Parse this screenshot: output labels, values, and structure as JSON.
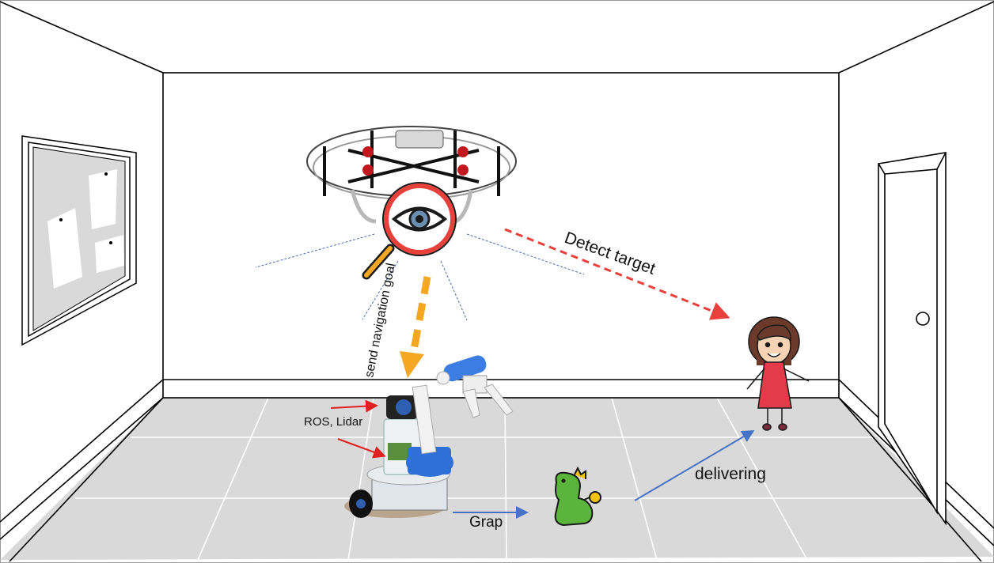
{
  "labels": {
    "detect_target": "Detect target",
    "send_navigation_goal": "send navigation goal",
    "ros_lidar": "ROS, Lidar",
    "grap": "Grap",
    "delivering": "delivering"
  },
  "colors": {
    "floor": "#d9d9d9",
    "outline": "#000000",
    "detect_arrow": "#e8413c",
    "navigation_arrow": "#f5a623",
    "action_arrow": "#4472c4",
    "ros_arrow": "#e02020",
    "fov_lines": "#4a6fb5"
  },
  "icons": [
    "drone-icon",
    "magnifier-eye-icon",
    "robot-arm-icon",
    "toy-dinosaur-icon",
    "girl-icon",
    "door-icon",
    "bulletin-board-icon"
  ]
}
